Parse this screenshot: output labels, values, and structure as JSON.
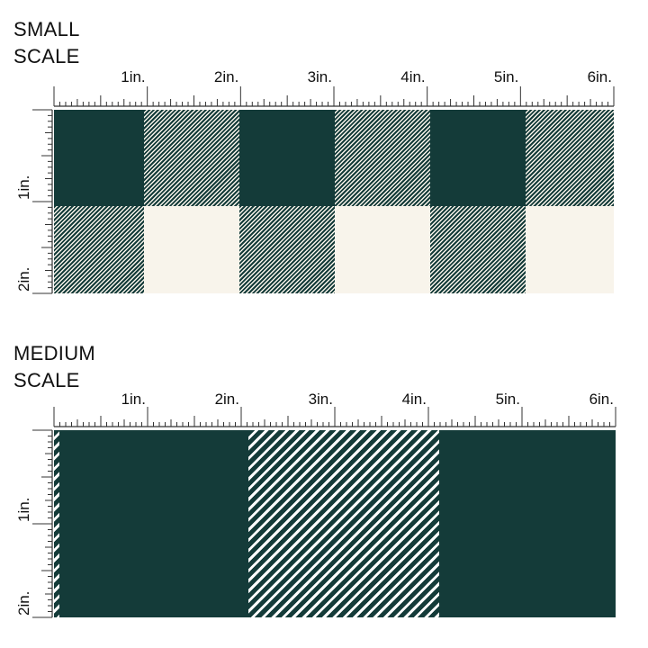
{
  "small": {
    "title_line1": "SMALL",
    "title_line2": "SCALE",
    "x_labels": [
      "1in.",
      "2in.",
      "3in.",
      "4in.",
      "5in.",
      "6in."
    ],
    "y_labels": [
      "1in.",
      "2in."
    ]
  },
  "medium": {
    "title_line1": "MEDIUM",
    "title_line2": "SCALE",
    "x_labels": [
      "1in.",
      "2in.",
      "3in.",
      "4in.",
      "5in.",
      "6in."
    ],
    "y_labels": [
      "1in.",
      "2in."
    ]
  },
  "colors": {
    "dark_green": "#143b39",
    "cream": "#f8f4eb"
  }
}
